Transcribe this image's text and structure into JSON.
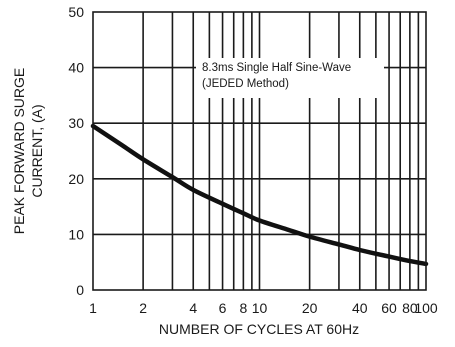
{
  "chart_data": {
    "type": "line",
    "xscale": "log",
    "grid": true,
    "xlim": [
      1,
      100
    ],
    "ylim": [
      0,
      50
    ],
    "xlabel": "NUMBER OF CYCLES AT 60Hz",
    "ylabel_lines": [
      "PEAK FORWARD SURGE",
      "CURRENT, (A)"
    ],
    "annotation_lines": [
      "8.3ms Single Half Sine-Wave",
      "(JEDED Method)"
    ],
    "x_ticks": [
      1,
      2,
      4,
      6,
      8,
      10,
      20,
      40,
      60,
      80,
      100
    ],
    "x_tick_labels": [
      "1",
      "2",
      "4",
      "6",
      "8",
      "10",
      "20",
      "40",
      "60",
      "80",
      "100"
    ],
    "y_ticks": [
      0,
      10,
      20,
      30,
      40,
      50
    ],
    "y_tick_labels": [
      "0",
      "10",
      "20",
      "30",
      "40",
      "50"
    ],
    "series": [
      {
        "x": [
          1,
          1.5,
          2,
          3,
          4,
          6,
          8,
          10,
          15,
          20,
          30,
          40,
          60,
          80,
          100
        ],
        "y": [
          29.5,
          26,
          23.5,
          20.3,
          18,
          15.5,
          13.8,
          12.5,
          10.8,
          9.6,
          8.2,
          7.2,
          6,
          5.2,
          4.7
        ]
      }
    ]
  }
}
